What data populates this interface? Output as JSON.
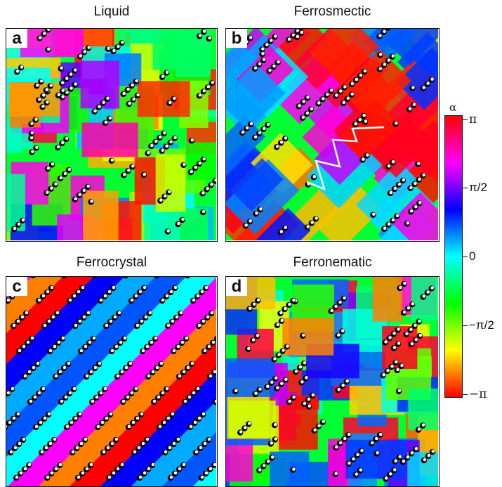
{
  "panels": [
    {
      "letter": "a",
      "title": "Liquid"
    },
    {
      "letter": "b",
      "title": "Ferrosmectic"
    },
    {
      "letter": "c",
      "title": "Ferrocrystal"
    },
    {
      "letter": "d",
      "title": "Ferronematic"
    }
  ],
  "colorbar": {
    "symbol": "α",
    "ticks": [
      "π",
      "π/2",
      "0",
      "−π/2",
      "−π"
    ],
    "colors": [
      "#ff0000",
      "#ff00ff",
      "#0000ff",
      "#00ffff",
      "#00ff00",
      "#ffff00",
      "#ff0000"
    ]
  }
}
